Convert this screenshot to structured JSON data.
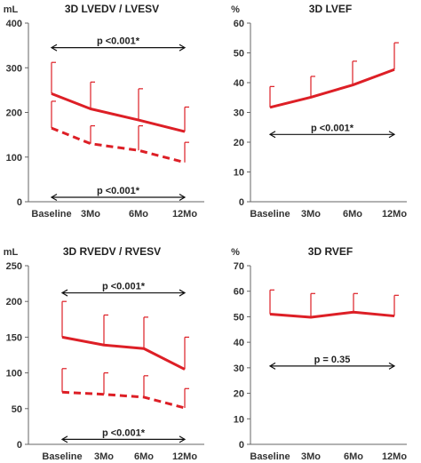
{
  "colors": {
    "series": "#dd1f26",
    "axis": "#666666",
    "text": "#222222"
  },
  "chart_data": [
    {
      "type": "line",
      "title": "3D LVEDV / LVESV",
      "unit_label": "mL",
      "categories": [
        "Baseline",
        "3Mo",
        "6Mo",
        "12Mo"
      ],
      "ylim": [
        0,
        400
      ],
      "yticks": [
        0,
        100,
        200,
        300,
        400
      ],
      "series": [
        {
          "style": "solid",
          "values": [
            242,
            208,
            183,
            157
          ],
          "errors": [
            70,
            60,
            70,
            55
          ]
        },
        {
          "style": "dashed",
          "values": [
            165,
            130,
            115,
            88
          ],
          "errors": [
            60,
            40,
            55,
            45
          ]
        }
      ],
      "annotations": [
        {
          "text": "p <0.001*",
          "y": 345,
          "bracket": "top"
        },
        {
          "text": "p <0.001*",
          "y": 10,
          "bracket": "bottom"
        }
      ]
    },
    {
      "type": "line",
      "title": "3D LVEF",
      "unit_label": "%",
      "categories": [
        "Baseline",
        "3Mo",
        "6Mo",
        "12Mo"
      ],
      "ylim": [
        0,
        60
      ],
      "yticks": [
        0,
        10,
        20,
        30,
        40,
        50,
        60
      ],
      "series": [
        {
          "style": "solid",
          "values": [
            31.7,
            35.1,
            39.2,
            44.4
          ],
          "errors": [
            7,
            7,
            8,
            9
          ]
        }
      ],
      "annotations": [
        {
          "text": "p <0.001*",
          "y": 22.6,
          "bracket": "bottom"
        }
      ]
    },
    {
      "type": "line",
      "title": "3D RVEDV / RVESV",
      "unit_label": "mL",
      "categories": [
        "Baseline",
        "3Mo",
        "6Mo",
        "12Mo"
      ],
      "ylim": [
        0,
        250
      ],
      "yticks": [
        0,
        50,
        100,
        150,
        200,
        250
      ],
      "series": [
        {
          "style": "solid",
          "values": [
            150,
            139,
            134,
            105
          ],
          "errors": [
            50,
            42,
            44,
            45
          ]
        },
        {
          "style": "dashed",
          "values": [
            73,
            70,
            66,
            51
          ],
          "errors": [
            33,
            30,
            30,
            27
          ]
        }
      ],
      "annotations": [
        {
          "text": "p <0.001*",
          "y": 212,
          "bracket": "top"
        },
        {
          "text": "p <0.001*",
          "y": 7,
          "bracket": "bottom"
        }
      ]
    },
    {
      "type": "line",
      "title": "3D RVEF",
      "unit_label": "%",
      "categories": [
        "Baseline",
        "3Mo",
        "6Mo",
        "12Mo"
      ],
      "ylim": [
        0,
        70
      ],
      "yticks": [
        0,
        10,
        20,
        30,
        40,
        50,
        60,
        70
      ],
      "series": [
        {
          "style": "solid",
          "values": [
            51,
            49.8,
            51.8,
            50.3
          ],
          "errors": [
            9.5,
            9.3,
            7.3,
            8.1
          ]
        }
      ],
      "annotations": [
        {
          "text": "p = 0.35",
          "y": 30.7,
          "bracket": "bottom"
        }
      ]
    }
  ]
}
